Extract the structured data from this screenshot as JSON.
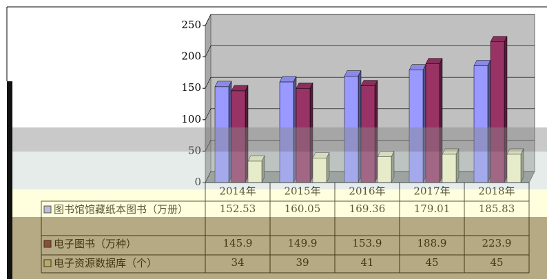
{
  "chart_data": {
    "type": "bar",
    "categories": [
      "2014年",
      "2015年",
      "2016年",
      "2017年",
      "2018年"
    ],
    "series": [
      {
        "name": "图书馆馆藏纸本图书（万册）",
        "color": "#9999ff",
        "values": [
          152.53,
          160.05,
          169.36,
          179.01,
          185.83
        ]
      },
      {
        "name": "电子图书（万种）",
        "color": "#993366",
        "values": [
          145.9,
          149.9,
          153.9,
          188.9,
          223.9
        ]
      },
      {
        "name": "电子资源数据库（个）",
        "color": "#ffffcc",
        "values": [
          34,
          39,
          41,
          45,
          45
        ]
      }
    ],
    "ylim": [
      0,
      250
    ],
    "yticks": [
      0,
      50,
      100,
      150,
      200,
      250
    ],
    "grid": true
  }
}
